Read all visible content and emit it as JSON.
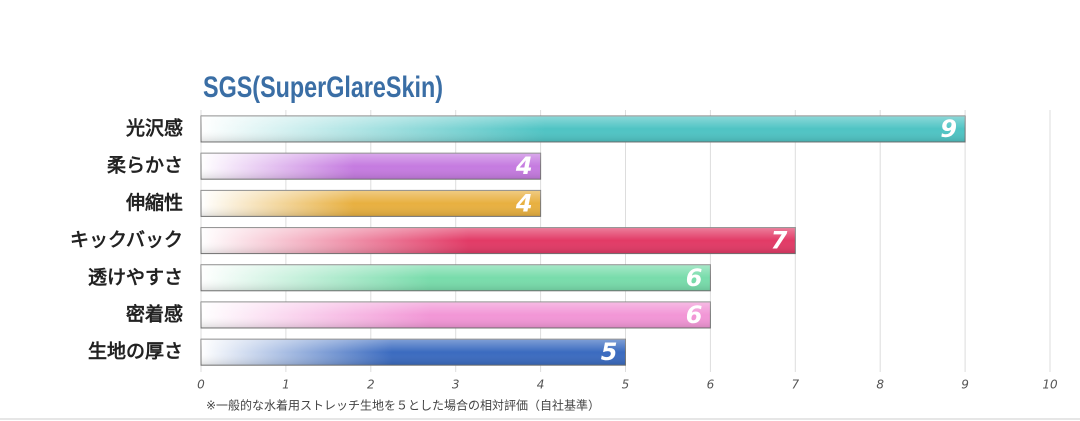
{
  "chart_data": {
    "type": "bar",
    "orientation": "horizontal",
    "title": "SGS(SuperGlareSkin)",
    "footnote": "※一般的な水着用ストレッチ生地を５とした場合の相対評価（自社基準）",
    "categories": [
      "光沢感",
      "柔らかさ",
      "伸縮性",
      "キックバック",
      "透けやすさ",
      "密着感",
      "生地の厚さ"
    ],
    "values": [
      9,
      4,
      4,
      7,
      6,
      6,
      5
    ],
    "colors": [
      "#4fc4c4",
      "#c57be0",
      "#e8b040",
      "#e23a66",
      "#78dcab",
      "#f296d6",
      "#3b6bc0"
    ],
    "xlim": [
      0,
      10
    ],
    "xticks": [
      0,
      1,
      2,
      3,
      4,
      5,
      6,
      7,
      8,
      9,
      10
    ],
    "grid": true
  }
}
